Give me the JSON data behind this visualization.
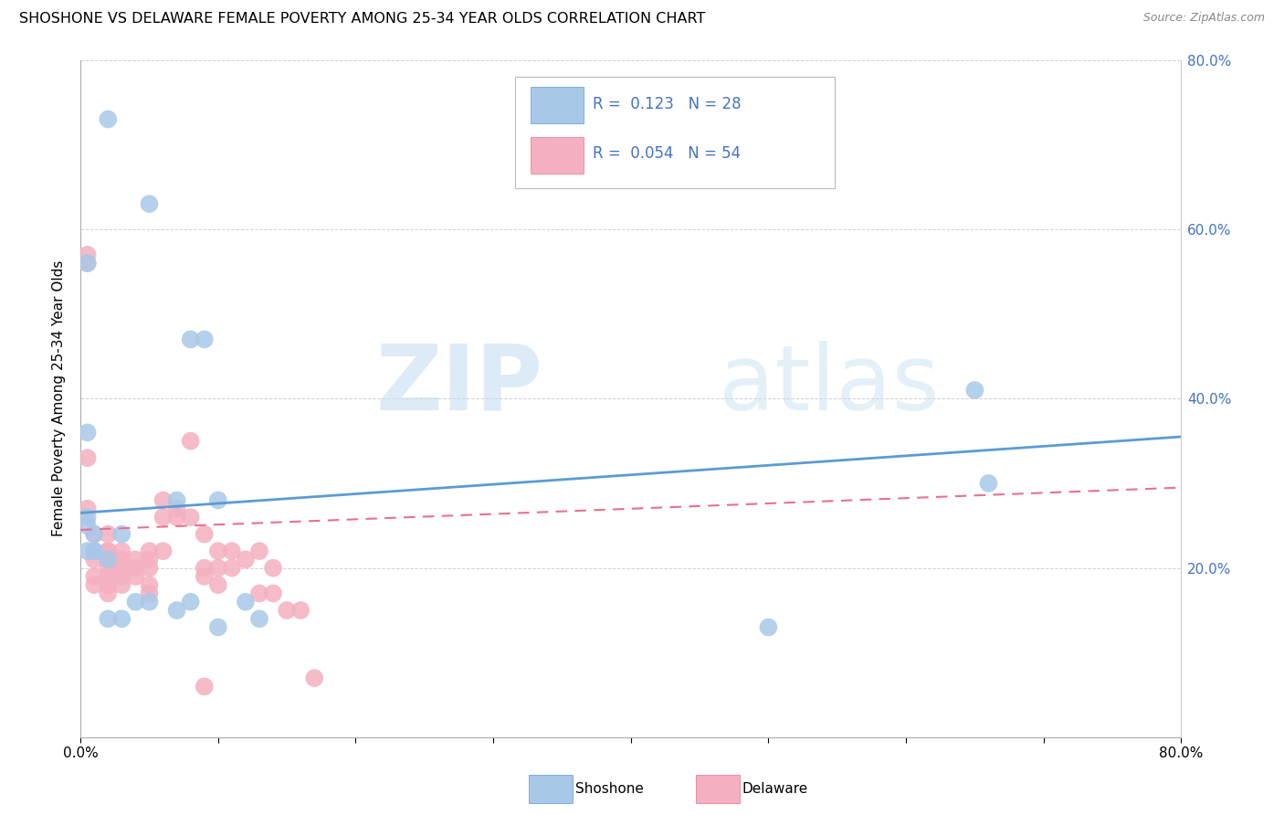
{
  "title": "SHOSHONE VS DELAWARE FEMALE POVERTY AMONG 25-34 YEAR OLDS CORRELATION CHART",
  "source": "Source: ZipAtlas.com",
  "ylabel": "Female Poverty Among 25-34 Year Olds",
  "xlim": [
    0.0,
    0.8
  ],
  "ylim": [
    0.0,
    0.8
  ],
  "shoshone_color": "#a8c8e8",
  "delaware_color": "#f4b0c0",
  "shoshone_line_color": "#5b9bd5",
  "delaware_line_color": "#e87090",
  "R_shoshone": 0.123,
  "N_shoshone": 28,
  "R_delaware": 0.054,
  "N_delaware": 54,
  "shoshone_x": [
    0.02,
    0.005,
    0.05,
    0.08,
    0.09,
    0.005,
    0.005,
    0.005,
    0.01,
    0.01,
    0.01,
    0.02,
    0.03,
    0.04,
    0.05,
    0.07,
    0.07,
    0.08,
    0.1,
    0.1,
    0.12,
    0.13,
    0.5,
    0.65,
    0.66,
    0.005,
    0.02,
    0.03
  ],
  "shoshone_y": [
    0.73,
    0.56,
    0.63,
    0.47,
    0.47,
    0.36,
    0.26,
    0.22,
    0.24,
    0.22,
    0.22,
    0.21,
    0.24,
    0.16,
    0.16,
    0.28,
    0.15,
    0.16,
    0.28,
    0.13,
    0.16,
    0.14,
    0.13,
    0.41,
    0.3,
    0.25,
    0.14,
    0.14
  ],
  "delaware_x": [
    0.005,
    0.005,
    0.005,
    0.005,
    0.01,
    0.01,
    0.01,
    0.01,
    0.01,
    0.02,
    0.02,
    0.02,
    0.02,
    0.02,
    0.02,
    0.02,
    0.02,
    0.03,
    0.03,
    0.03,
    0.03,
    0.03,
    0.04,
    0.04,
    0.04,
    0.05,
    0.05,
    0.05,
    0.05,
    0.05,
    0.06,
    0.06,
    0.06,
    0.07,
    0.07,
    0.08,
    0.08,
    0.09,
    0.09,
    0.09,
    0.09,
    0.1,
    0.1,
    0.1,
    0.11,
    0.11,
    0.12,
    0.13,
    0.13,
    0.14,
    0.14,
    0.15,
    0.16,
    0.17
  ],
  "delaware_y": [
    0.56,
    0.57,
    0.33,
    0.27,
    0.24,
    0.22,
    0.21,
    0.19,
    0.18,
    0.24,
    0.22,
    0.22,
    0.21,
    0.2,
    0.19,
    0.18,
    0.17,
    0.22,
    0.21,
    0.2,
    0.19,
    0.18,
    0.21,
    0.2,
    0.19,
    0.22,
    0.21,
    0.2,
    0.18,
    0.17,
    0.28,
    0.26,
    0.22,
    0.27,
    0.26,
    0.35,
    0.26,
    0.24,
    0.2,
    0.19,
    0.06,
    0.22,
    0.2,
    0.18,
    0.22,
    0.2,
    0.21,
    0.22,
    0.17,
    0.2,
    0.17,
    0.15,
    0.15,
    0.07
  ]
}
